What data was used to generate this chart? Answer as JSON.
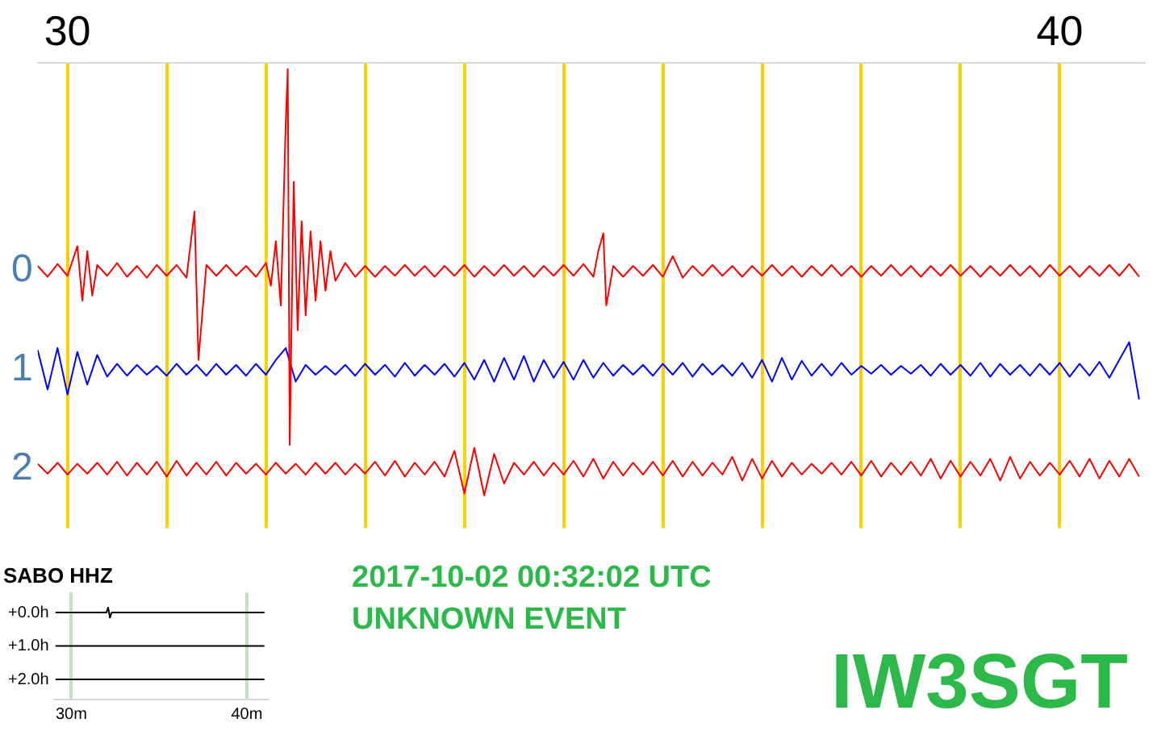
{
  "chart_data": [
    {
      "type": "line",
      "x": [
        29.7,
        29.8,
        29.9,
        30.0,
        30.1,
        30.2,
        30.3,
        30.4,
        30.5,
        30.6,
        30.7,
        30.8,
        30.9,
        31.0,
        31.1,
        31.2,
        31.3,
        31.4,
        31.5,
        31.6,
        31.7,
        31.8,
        31.9,
        32.0,
        32.1,
        32.2,
        32.3,
        32.4,
        32.5,
        32.6,
        32.7,
        32.8,
        32.9,
        33.0,
        33.1,
        33.2,
        33.3,
        33.4,
        33.5,
        33.6,
        33.7,
        33.8,
        33.9,
        34.0,
        34.1,
        34.2,
        34.3,
        34.4,
        34.5,
        34.6,
        34.7,
        34.8,
        34.9,
        35.0,
        35.1,
        35.2,
        35.3,
        35.4,
        35.5,
        35.6,
        35.7,
        35.8,
        35.9,
        36.0,
        36.1,
        36.2,
        36.3,
        36.4,
        36.5,
        36.6,
        36.7,
        36.8,
        36.9,
        37.0,
        37.1,
        37.2,
        37.3,
        37.4,
        37.5,
        37.6,
        37.7,
        37.8,
        37.9,
        38.0,
        38.1,
        38.2,
        38.3,
        38.4,
        38.5,
        38.6,
        38.7,
        38.8,
        38.9,
        39.0,
        39.1,
        39.2,
        39.3,
        39.4,
        39.5,
        39.6,
        39.7,
        39.8,
        39.9,
        40.0,
        40.1,
        40.2,
        40.3,
        40.4,
        40.5,
        40.6,
        40.7,
        40.8
      ],
      "series": [
        {
          "color": "#ff0000",
          "x": [
            29.7,
            29.8,
            29.9,
            30.0,
            30.1,
            30.15,
            30.2,
            30.25,
            30.3,
            30.4,
            30.5,
            30.6,
            30.7,
            30.8,
            30.9,
            31.0,
            31.1,
            31.2,
            31.28,
            31.32,
            31.4,
            31.5,
            31.6,
            31.7,
            31.8,
            31.9,
            32.0,
            32.05,
            32.1,
            32.15,
            32.2,
            32.22,
            32.24,
            32.28,
            32.32,
            32.36,
            32.4,
            32.45,
            32.5,
            32.55,
            32.6,
            32.65,
            32.7,
            32.8,
            32.9,
            33.0,
            33.1,
            33.2,
            33.3,
            33.4,
            33.5,
            33.6,
            33.7,
            33.8,
            33.9,
            34.0,
            34.1,
            34.2,
            34.3,
            34.4,
            34.5,
            34.6,
            34.7,
            34.8,
            34.9,
            35.0,
            35.1,
            35.2,
            35.3,
            35.35,
            35.4,
            35.43,
            35.5,
            35.6,
            35.7,
            35.8,
            35.9,
            36.0,
            36.1,
            36.2,
            36.3,
            36.4,
            36.5,
            36.6,
            36.7,
            36.8,
            36.9,
            37.0,
            37.1,
            37.2,
            37.3,
            37.4,
            37.5,
            37.6,
            37.7,
            37.8,
            37.9,
            38.0,
            38.1,
            38.2,
            38.3,
            38.4,
            38.5,
            38.6,
            38.7,
            38.8,
            38.9,
            39.0,
            39.1,
            39.2,
            39.3,
            39.4,
            39.5,
            39.6,
            39.7,
            39.8,
            39.9,
            40.0,
            40.1,
            40.2,
            40.3,
            40.4,
            40.5,
            40.6,
            40.7,
            40.8
          ],
          "values": [
            -0.05,
            0.06,
            -0.07,
            0.05,
            -0.25,
            0.3,
            -0.2,
            0.25,
            -0.06,
            0.05,
            -0.08,
            0.06,
            -0.05,
            0.07,
            -0.06,
            0.05,
            -0.06,
            0.07,
            -0.6,
            0.9,
            -0.06,
            0.05,
            -0.06,
            0.05,
            -0.05,
            0.06,
            -0.08,
            0.15,
            -0.3,
            0.35,
            -1.5,
            -2.04,
            1.76,
            -0.9,
            0.6,
            -0.5,
            0.45,
            -0.4,
            0.3,
            -0.3,
            0.2,
            -0.2,
            0.1,
            -0.08,
            0.06,
            -0.05,
            0.06,
            -0.05,
            0.05,
            -0.06,
            0.05,
            -0.05,
            0.06,
            -0.05,
            0.05,
            -0.06,
            0.06,
            -0.05,
            0.05,
            -0.06,
            0.05,
            -0.05,
            0.06,
            -0.05,
            0.05,
            -0.06,
            0.05,
            -0.07,
            0.06,
            -0.2,
            -0.38,
            0.35,
            -0.05,
            0.06,
            -0.05,
            0.05,
            -0.06,
            0.06,
            -0.15,
            0.07,
            -0.05,
            0.05,
            -0.06,
            0.05,
            -0.05,
            0.06,
            -0.05,
            0.05,
            -0.06,
            0.05,
            -0.05,
            0.06,
            -0.05,
            0.05,
            -0.06,
            0.05,
            -0.05,
            0.06,
            -0.05,
            0.05,
            -0.06,
            0.05,
            -0.05,
            0.06,
            -0.05,
            0.05,
            -0.06,
            0.05,
            -0.05,
            0.06,
            -0.05,
            0.05,
            -0.06,
            0.05,
            -0.05,
            0.06,
            -0.06,
            0.05,
            -0.05,
            0.06,
            -0.05,
            0.05,
            -0.06,
            0.05,
            -0.07,
            0.06
          ]
        },
        {
          "color": "#0000ff",
          "values": [
            0.8,
            1.2,
            0.78,
            1.25,
            0.82,
            1.15,
            0.85,
            1.07,
            0.94,
            1.06,
            0.95,
            1.05,
            0.96,
            1.06,
            0.94,
            1.05,
            0.95,
            1.06,
            0.94,
            1.05,
            0.95,
            1.06,
            0.94,
            1.05,
            0.9,
            0.78,
            1.12,
            0.95,
            1.05,
            0.96,
            1.05,
            0.95,
            1.06,
            0.94,
            1.05,
            0.95,
            1.07,
            0.93,
            1.06,
            0.95,
            1.05,
            0.94,
            1.07,
            0.93,
            1.1,
            0.9,
            1.12,
            0.88,
            1.1,
            0.86,
            1.12,
            0.9,
            1.08,
            0.92,
            1.1,
            0.9,
            1.08,
            0.93,
            1.06,
            0.95,
            1.05,
            0.95,
            1.06,
            0.94,
            1.05,
            0.93,
            1.07,
            0.94,
            1.05,
            0.95,
            1.06,
            0.93,
            1.08,
            0.9,
            1.12,
            0.88,
            1.1,
            0.91,
            1.06,
            0.94,
            1.06,
            0.93,
            1.05,
            0.96,
            1.04,
            0.95,
            1.05,
            0.96,
            1.04,
            0.95,
            1.06,
            0.94,
            1.05,
            0.95,
            1.06,
            0.93,
            1.07,
            0.94,
            1.05,
            0.95,
            1.06,
            0.94,
            1.05,
            0.93,
            1.07,
            0.94,
            1.06,
            0.92,
            1.08,
            0.9,
            0.72,
            1.3
          ]
        },
        {
          "color": "#ff0000",
          "values": [
            1.95,
            2.05,
            1.94,
            2.06,
            1.95,
            2.05,
            1.94,
            2.06,
            1.93,
            2.07,
            1.94,
            2.06,
            1.93,
            2.08,
            1.92,
            2.07,
            1.94,
            2.06,
            1.93,
            2.07,
            1.94,
            2.05,
            1.95,
            2.06,
            1.94,
            2.05,
            1.95,
            2.06,
            1.94,
            2.05,
            1.94,
            2.06,
            1.95,
            2.05,
            1.93,
            2.07,
            1.92,
            2.08,
            1.94,
            2.06,
            1.93,
            2.08,
            1.82,
            2.25,
            1.79,
            2.27,
            1.85,
            2.15,
            1.94,
            2.06,
            1.93,
            2.07,
            1.94,
            2.06,
            1.92,
            2.08,
            1.9,
            2.1,
            1.93,
            2.07,
            1.94,
            2.06,
            1.93,
            2.07,
            1.92,
            2.08,
            1.93,
            2.07,
            1.94,
            2.06,
            1.88,
            2.12,
            1.9,
            2.1,
            1.92,
            2.08,
            1.94,
            2.06,
            1.95,
            2.05,
            1.94,
            2.06,
            1.93,
            2.07,
            1.92,
            2.08,
            1.94,
            2.06,
            1.93,
            2.07,
            1.9,
            2.1,
            1.92,
            2.08,
            1.93,
            2.07,
            1.9,
            2.12,
            1.88,
            2.1,
            1.93,
            2.07,
            1.94,
            2.06,
            1.92,
            2.08,
            1.9,
            2.1,
            1.92,
            2.08,
            1.9,
            2.08
          ]
        }
      ],
      "xlim": [
        29.7,
        40.85
      ],
      "xticks": [
        30,
        {
          "value": 31,
          "label": null
        },
        {
          "value": 32,
          "label": null
        },
        {
          "value": 33,
          "label": null
        },
        {
          "value": 34,
          "label": null
        },
        {
          "value": 35,
          "label": null
        },
        {
          "value": 36,
          "label": null
        },
        {
          "value": 37,
          "label": null
        },
        {
          "value": 38,
          "label": null
        },
        {
          "value": 39,
          "label": null
        },
        40
      ],
      "ylim": [
        2.6,
        -2.1
      ],
      "yticks": [
        0,
        1,
        2
      ],
      "grid": "x",
      "marker": "none",
      "annotations": [
        "2017-10-02 00:32:02 UTC",
        "UNKNOWN EVENT",
        "IW3SGT"
      ]
    },
    {
      "type": "line",
      "title": "SABO HHZ",
      "series": [
        {
          "color": "#000000",
          "x": [
            29.1,
            32.0,
            32.1,
            32.2,
            32.3,
            41.0
          ],
          "values": [
            0,
            0,
            -0.15,
            0.15,
            0,
            0
          ]
        },
        {
          "color": "#000000",
          "x": [
            29.1,
            41.0
          ],
          "values": [
            1,
            1
          ]
        },
        {
          "color": "#000000",
          "x": [
            29.1,
            41.0
          ],
          "values": [
            2,
            2
          ]
        }
      ],
      "xlim": [
        29,
        41.2
      ],
      "xticks": [
        {
          "value": 30,
          "label": "30m"
        },
        {
          "value": 40,
          "label": "40m"
        }
      ],
      "ylim": [
        2.6,
        -0.6
      ],
      "yticks": [
        {
          "value": 0,
          "label": "+0.0h"
        },
        {
          "value": 1,
          "label": "+1.0h"
        },
        {
          "value": 2,
          "label": "+2.0h"
        }
      ],
      "grid": "x",
      "marker": "none"
    }
  ]
}
